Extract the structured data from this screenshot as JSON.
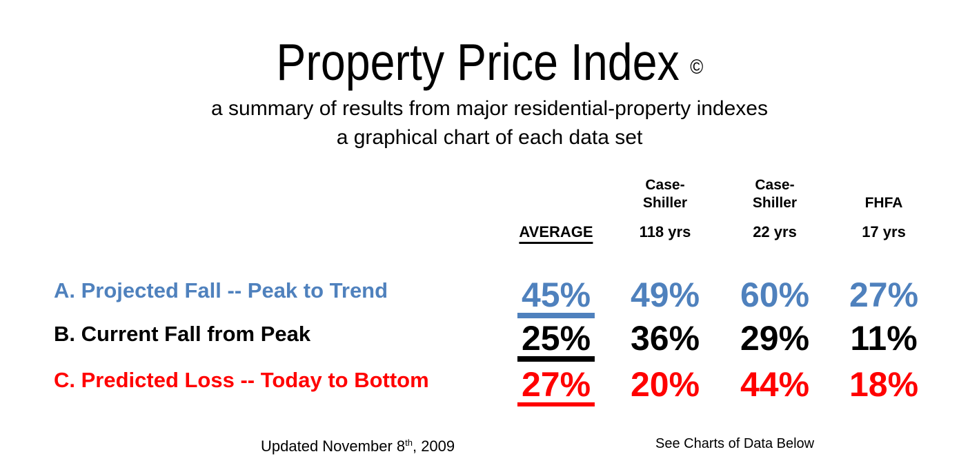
{
  "header": {
    "title": "Property Price Index",
    "copyright_symbol": "©",
    "subtitle_line1": "a summary of results from major residential-property indexes",
    "subtitle_line2": "a graphical chart of each data set"
  },
  "table": {
    "column_groups": [
      "Case-Shiller",
      "Case-Shiller",
      "FHFA"
    ],
    "column_headers": [
      "AVERAGE",
      "118 yrs",
      "22 yrs",
      "17 yrs"
    ],
    "rows": [
      {
        "label": "A. Projected Fall -- Peak to Trend",
        "color": "#4F81BD",
        "values": [
          "45%",
          "49%",
          "60%",
          "27%"
        ]
      },
      {
        "label": "B. Current Fall from Peak",
        "color": "#000000",
        "values": [
          "25%",
          "36%",
          "29%",
          "11%"
        ]
      },
      {
        "label": "C. Predicted Loss -- Today to Bottom",
        "color": "#FF0000",
        "values": [
          "27%",
          "20%",
          "44%",
          "18%"
        ]
      }
    ]
  },
  "footer": {
    "updated_prefix": "Updated November 8",
    "updated_superscript": "th",
    "updated_suffix": ", 2009",
    "see_charts": "See Charts of Data Below"
  },
  "chart_data": {
    "type": "table",
    "title": "Property Price Index",
    "subtitle": "a summary of results from major residential-property indexes; a graphical chart of each data set",
    "columns": [
      "AVERAGE",
      "Case-Shiller 118 yrs",
      "Case-Shiller 22 yrs",
      "FHFA 17 yrs"
    ],
    "rows": [
      {
        "label": "A. Projected Fall -- Peak to Trend",
        "values_pct": [
          45,
          49,
          60,
          27
        ]
      },
      {
        "label": "B. Current Fall from Peak",
        "values_pct": [
          25,
          36,
          29,
          11
        ]
      },
      {
        "label": "C. Predicted Loss -- Today to Bottom",
        "values_pct": [
          27,
          20,
          44,
          18
        ]
      }
    ],
    "row_colors": {
      "A": "#4F81BD",
      "B": "#000000",
      "C": "#FF0000"
    },
    "notes": [
      "AVERAGE column values are underlined",
      "Updated November 8th, 2009",
      "See Charts of Data Below"
    ]
  }
}
